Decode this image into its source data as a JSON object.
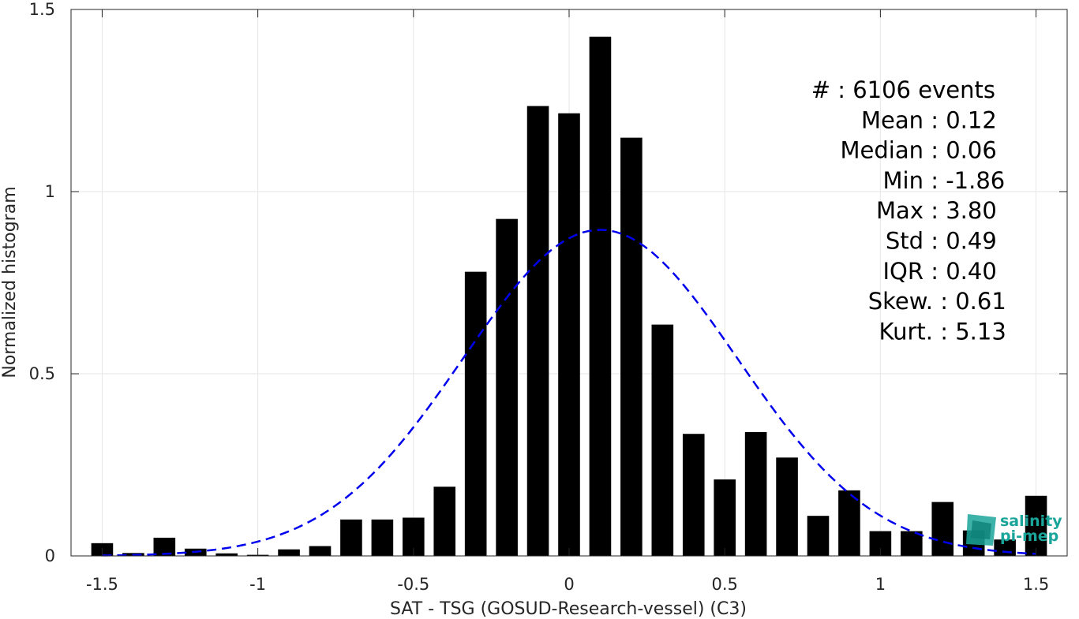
{
  "chart_data": {
    "type": "bar",
    "xlabel": "SAT - TSG (GOSUD-Research-vessel) (C3)",
    "ylabel": "Normalized histogram",
    "xlim": [
      -1.6,
      1.6
    ],
    "ylim": [
      0,
      1.5
    ],
    "grid": true,
    "x_ticks": [
      -1.5,
      -1,
      -0.5,
      0,
      0.5,
      1,
      1.5
    ],
    "x_tick_labels": [
      "-1.5",
      "-1",
      "-0.5",
      "0",
      "0.5",
      "1",
      "1.5"
    ],
    "y_ticks": [
      0,
      0.5,
      1,
      1.5
    ],
    "y_tick_labels": [
      "0",
      "0.5",
      "1",
      "1.5"
    ],
    "bin_width": 0.1,
    "bar_width": 0.07,
    "bins": [
      -1.5,
      -1.4,
      -1.3,
      -1.2,
      -1.1,
      -1.0,
      -0.9,
      -0.8,
      -0.7,
      -0.6,
      -0.5,
      -0.4,
      -0.3,
      -0.2,
      -0.1,
      0.0,
      0.1,
      0.2,
      0.3,
      0.4,
      0.5,
      0.6,
      0.7,
      0.8,
      0.9,
      1.0,
      1.1,
      1.2,
      1.3,
      1.4,
      1.5
    ],
    "values": [
      0.035,
      0.008,
      0.05,
      0.02,
      0.007,
      0.003,
      0.018,
      0.027,
      0.1,
      0.1,
      0.105,
      0.19,
      0.78,
      0.925,
      1.235,
      1.215,
      1.425,
      1.148,
      0.635,
      0.335,
      0.21,
      0.34,
      0.27,
      0.11,
      0.18,
      0.068,
      0.068,
      0.148,
      0.07,
      0.045,
      0.165
    ],
    "bar_color": "#000000",
    "fit": {
      "type": "gaussian",
      "mean": 0.1,
      "std": 0.44,
      "peak": 0.895,
      "x_range": [
        -1.5,
        1.5
      ],
      "color": "#0000ee",
      "style": "dashed"
    },
    "annotations": [
      {
        "key": "#",
        "sep": " : ",
        "value": "6106 events"
      },
      {
        "key": "Mean",
        "sep": " : ",
        "value": "0.12"
      },
      {
        "key": "Median",
        "sep": " : ",
        "value": "0.06"
      },
      {
        "key": "Min",
        "sep": " : ",
        "value": "-1.86"
      },
      {
        "key": "Max",
        "sep": " : ",
        "value": "3.80"
      },
      {
        "key": "Std",
        "sep": " : ",
        "value": "0.49"
      },
      {
        "key": "IQR",
        "sep": " : ",
        "value": "0.40"
      },
      {
        "key": "Skew.",
        "sep": " : ",
        "value": "0.61"
      },
      {
        "key": "Kurt.",
        "sep": " : ",
        "value": "5.13"
      }
    ]
  },
  "logo": {
    "line1": "salinity",
    "line2": "pi-mep",
    "color": "#1aa59a"
  }
}
